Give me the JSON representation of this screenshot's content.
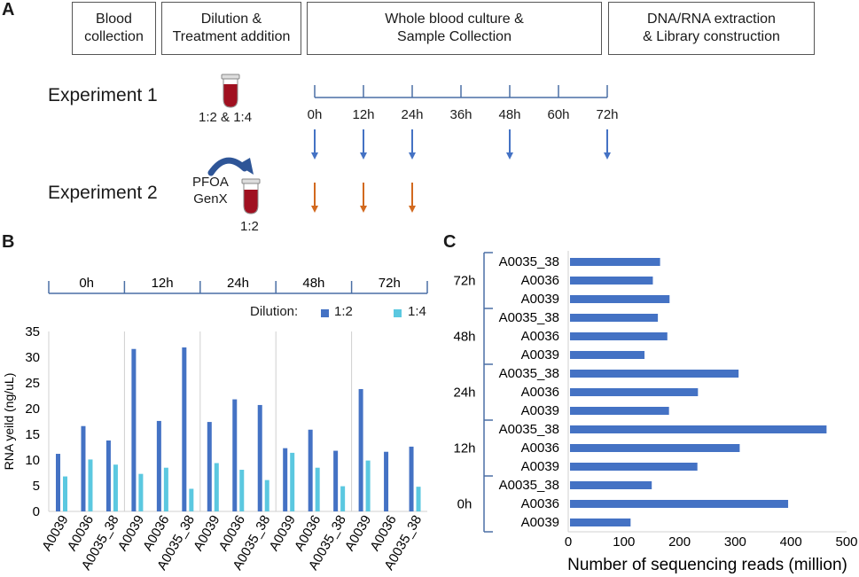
{
  "panel_a": {
    "letter": "A",
    "steps": [
      "Blood\ncollection",
      "Dilution &\nTreatment addition",
      "Whole blood culture &\nSample Collection",
      "DNA/RNA extraction\n& Library construction"
    ],
    "experiment1_label": "Experiment 1",
    "experiment2_label": "Experiment 2",
    "exp1_dilution": "1:2 & 1:4",
    "exp2_treatments": "PFOA\nGenX",
    "exp2_dilution": "1:2",
    "timepoints": [
      "0h",
      "12h",
      "24h",
      "36h",
      "48h",
      "60h",
      "72h"
    ],
    "exp1_sampled": [
      "0h",
      "12h",
      "24h",
      "48h",
      "72h"
    ],
    "exp2_sampled": [
      "0h",
      "12h",
      "24h"
    ],
    "colors": {
      "exp1_arrow": "#4472c4",
      "exp2_arrow": "#d2691e",
      "tube": "#a01020",
      "curve_arrow": "#2e5597"
    }
  },
  "panel_b": {
    "letter": "B",
    "group_labels": [
      "0h",
      "12h",
      "24h",
      "48h",
      "72h"
    ],
    "legend_title": "Dilution:",
    "colors": {
      "1:2": "#4472c4",
      "1:4": "#5bc8e0"
    }
  },
  "panel_c": {
    "letter": "C"
  },
  "chart_data": [
    {
      "type": "bar",
      "title": "",
      "ylabel": "RNA yeild (ng/uL)",
      "xlabel": "",
      "ylim": [
        0,
        35
      ],
      "yticks": [
        0,
        5,
        10,
        15,
        20,
        25,
        30,
        35
      ],
      "groups": [
        "0h",
        "12h",
        "24h",
        "48h",
        "72h"
      ],
      "categories": [
        "A0039",
        "A0036",
        "A0035_38",
        "A0039",
        "A0036",
        "A0035_38",
        "A0039",
        "A0036",
        "A0035_38",
        "A0039",
        "A0036",
        "A0035_38",
        "A0039",
        "A0036",
        "A0035_38"
      ],
      "series": [
        {
          "name": "1:2",
          "values": [
            11.2,
            16.6,
            13.8,
            31.6,
            17.6,
            31.9,
            17.4,
            21.8,
            20.7,
            12.3,
            15.9,
            11.8,
            23.8,
            11.6,
            12.6
          ]
        },
        {
          "name": "1:4",
          "values": [
            6.8,
            10.1,
            9.1,
            7.3,
            8.5,
            4.4,
            9.4,
            8.1,
            6.1,
            11.4,
            8.5,
            4.9,
            9.9,
            0,
            4.8
          ]
        }
      ],
      "legend": "top-right"
    },
    {
      "type": "bar",
      "orientation": "horizontal",
      "title": "",
      "xlabel": "Number of sequencing reads (million)",
      "ylabel": "",
      "xlim": [
        0,
        500
      ],
      "xticks": [
        0,
        100,
        200,
        300,
        400,
        500
      ],
      "groups": [
        "72h",
        "48h",
        "24h",
        "12h",
        "0h"
      ],
      "categories": [
        "A0035_38",
        "A0036",
        "A0039",
        "A0035_38",
        "A0036",
        "A0039",
        "A0035_38",
        "A0036",
        "A0039",
        "A0035_38",
        "A0036",
        "A0039",
        "A0035_38",
        "A0036",
        "A0039"
      ],
      "series": [
        {
          "name": "reads",
          "values": [
            165,
            152,
            182,
            161,
            178,
            137,
            306,
            233,
            181,
            464,
            308,
            232,
            150,
            395,
            112
          ]
        }
      ],
      "color": "#4472c4"
    }
  ]
}
